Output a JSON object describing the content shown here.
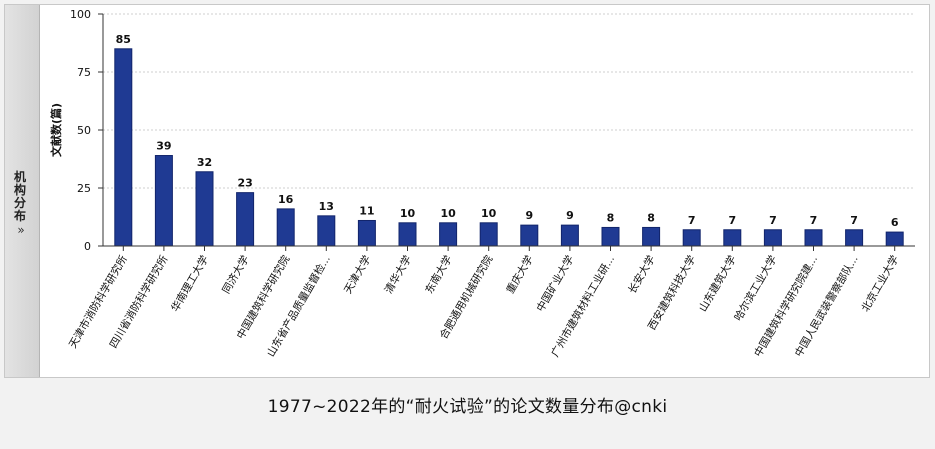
{
  "side_tab": {
    "label": "机构分布",
    "chevron": "»"
  },
  "caption": "1977~2022年的“耐火试验”的论文数量分布@cnki",
  "colors": {
    "bar": "#1f3a93",
    "bar_edge": "#12256b",
    "grid": "#cfcfcf",
    "axis": "#333333"
  },
  "chart_data": {
    "type": "bar",
    "ylabel": "文献数(篇)",
    "ylim": [
      0,
      100
    ],
    "yticks": [
      0,
      25,
      50,
      75,
      100
    ],
    "grid": true,
    "categories": [
      "天津市消防科学研究所",
      "四川省消防科学研究所",
      "华南理工大学",
      "同济大学",
      "中国建筑科学研究院",
      "山东省产品质量监督检...",
      "天津大学",
      "清华大学",
      "东南大学",
      "合肥通用机械研究院",
      "重庆大学",
      "中国矿业大学",
      "广州市建筑材料工业研...",
      "长安大学",
      "西安建筑科技大学",
      "山东建筑大学",
      "哈尔滨工业大学",
      "中国建筑科学研究院建...",
      "中国人民武装警察部队...",
      "北京工业大学"
    ],
    "values": [
      85,
      39,
      32,
      23,
      16,
      13,
      11,
      10,
      10,
      10,
      9,
      9,
      8,
      8,
      7,
      7,
      7,
      7,
      7,
      6
    ]
  }
}
